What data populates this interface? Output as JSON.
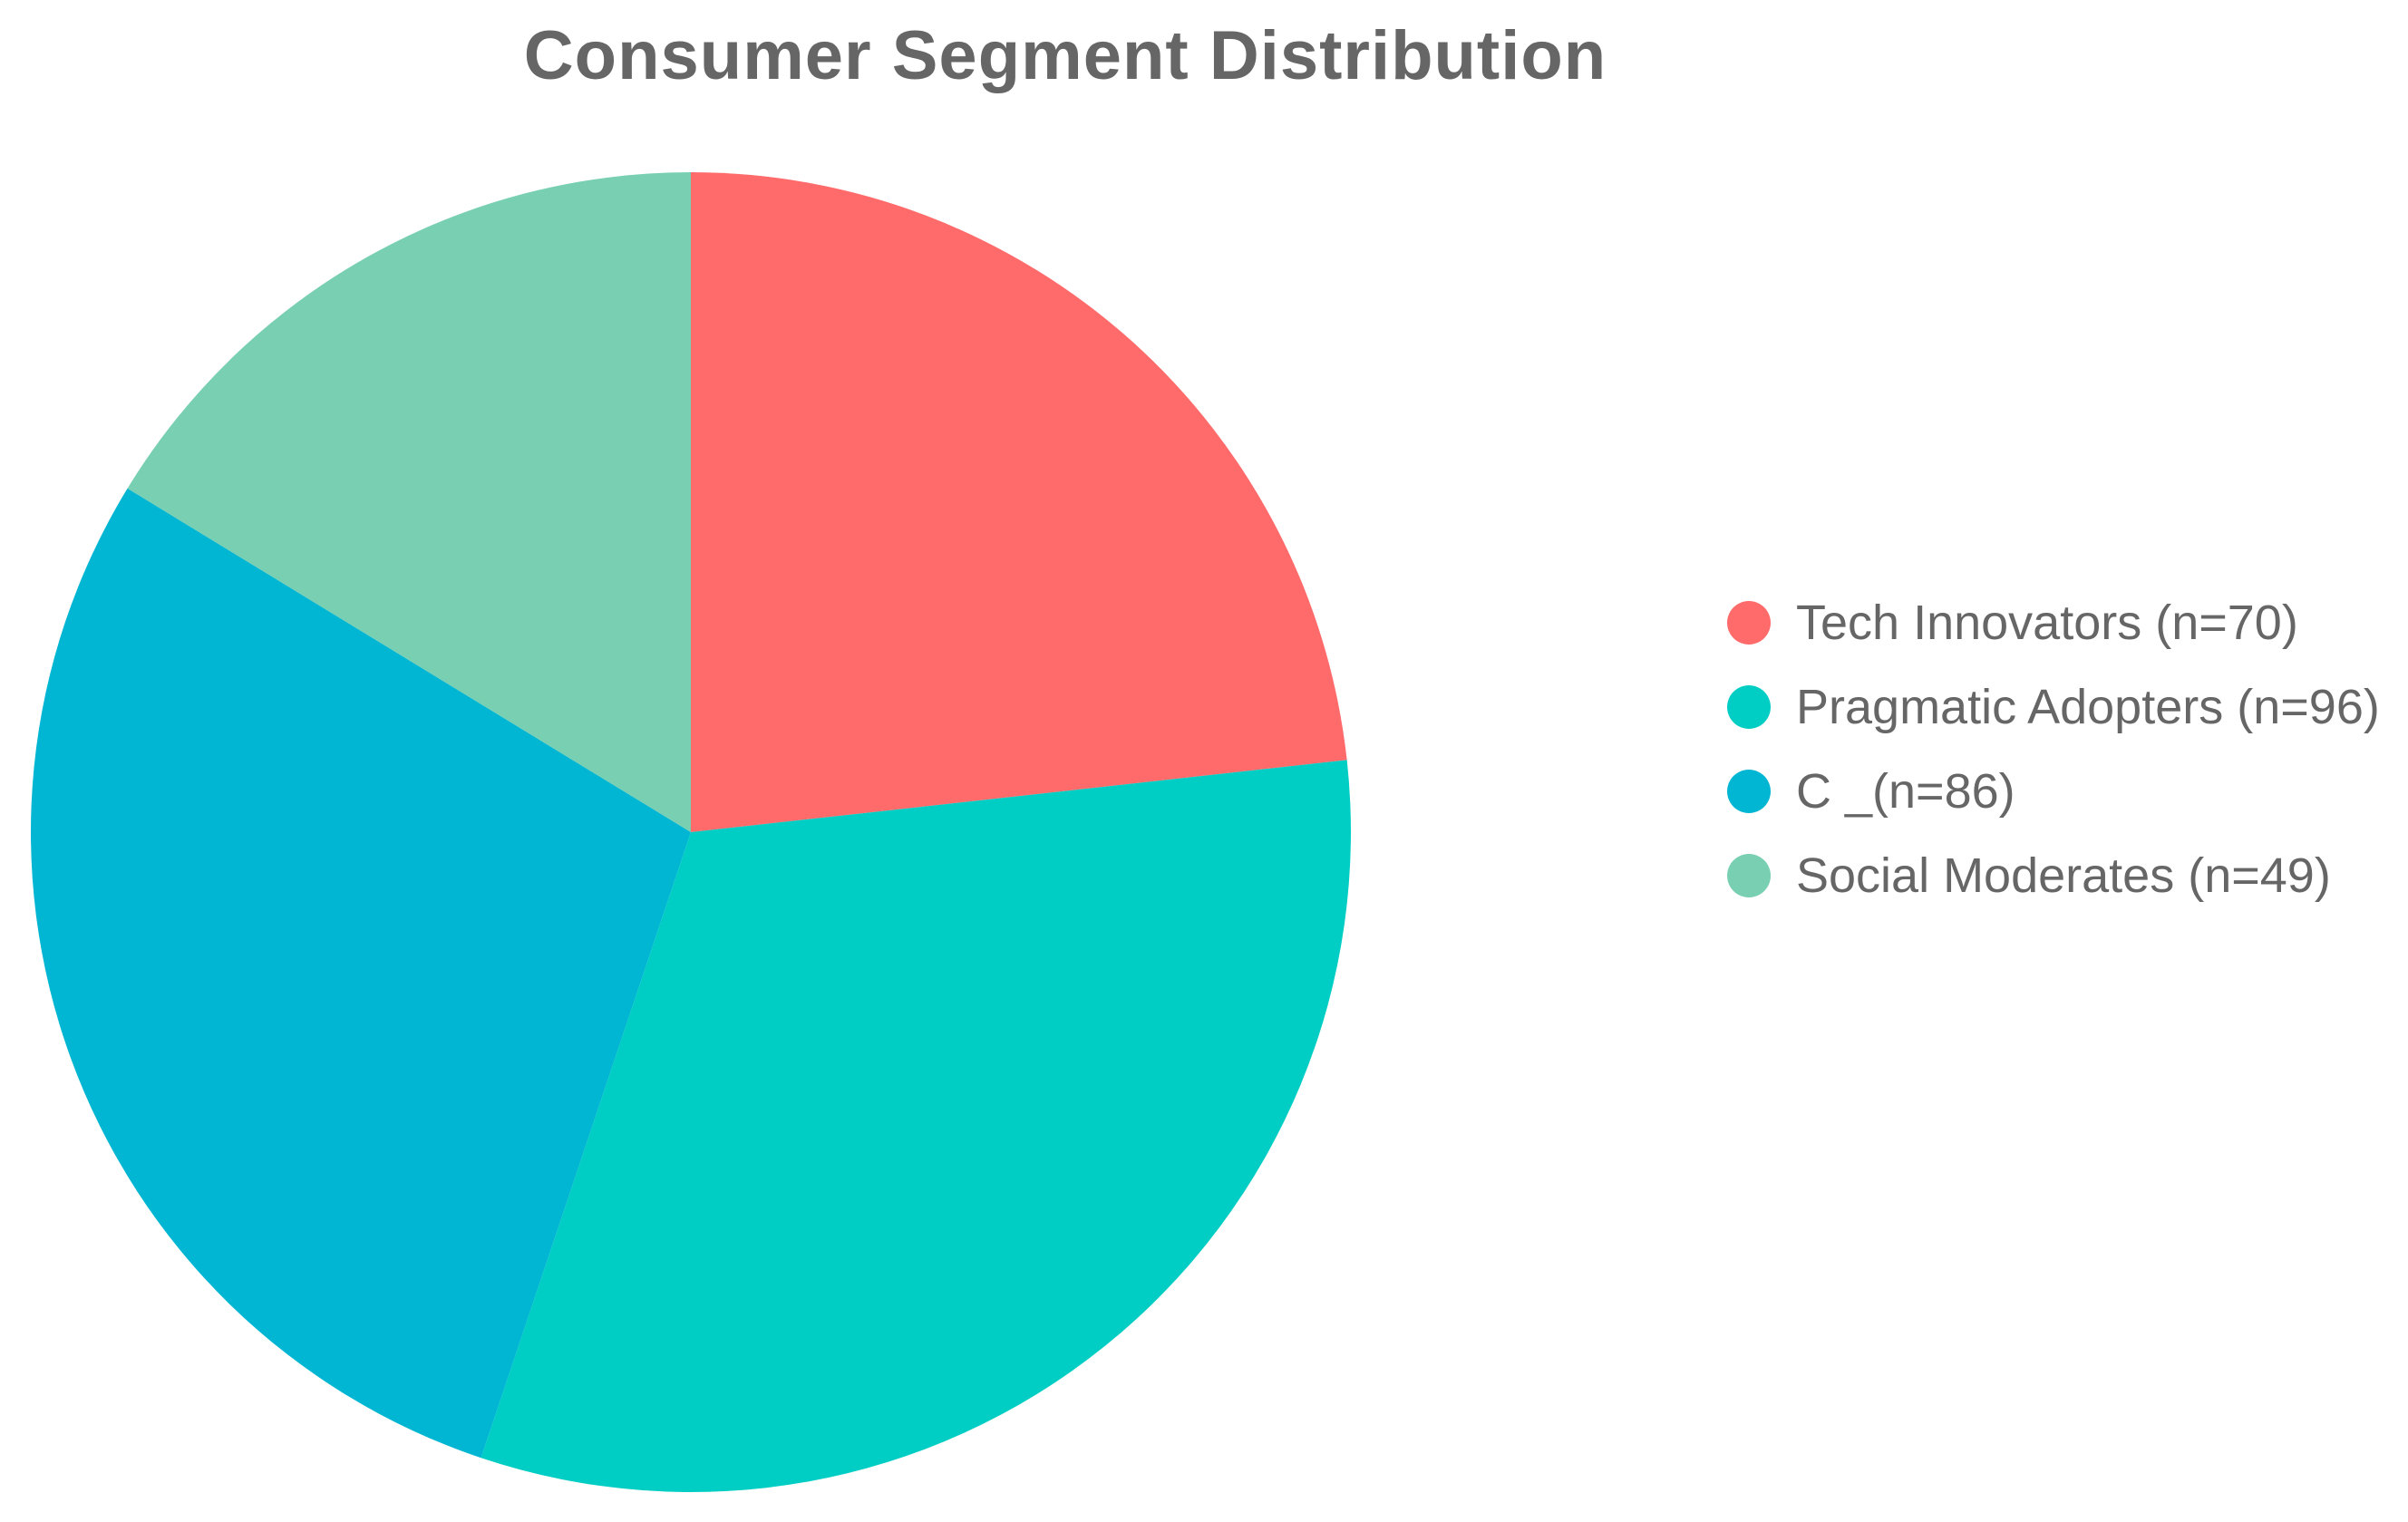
{
  "chart_data": {
    "type": "pie",
    "title": "Consumer Segment Distribution",
    "legend_position": "right",
    "slices": [
      {
        "label": "Tech Innovators (n=70)",
        "value": 70,
        "color": "#FF6B6B"
      },
      {
        "label": "Pragmatic Adopters (n=96)",
        "value": 96,
        "color": "#00CEC4"
      },
      {
        "label": "C _(n=86)",
        "value": 86,
        "color": "#00B6D2"
      },
      {
        "label": "Social Moderates (n=49)",
        "value": 49,
        "color": "#78CFB2"
      }
    ]
  }
}
